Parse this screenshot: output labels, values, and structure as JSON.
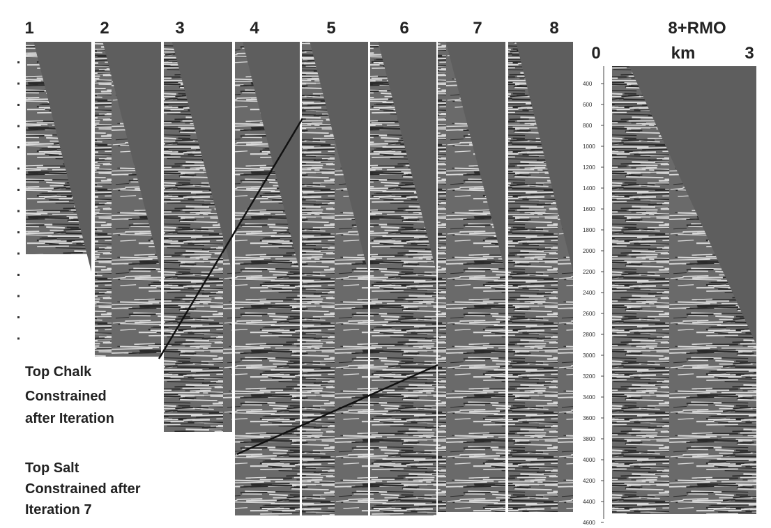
{
  "panel_labels": [
    "1",
    "2",
    "3",
    "4",
    "5",
    "6",
    "7",
    "8",
    "8+RMO"
  ],
  "axis": {
    "left": "0",
    "unit": "km",
    "right": "3"
  },
  "depth_scale": [
    "400",
    "600",
    "800",
    "1000",
    "1200",
    "1400",
    "1600",
    "1800",
    "2000",
    "2200",
    "2400",
    "2600",
    "2800",
    "3000",
    "3200",
    "3400",
    "3600",
    "3800",
    "4000",
    "4200",
    "4400",
    "4600"
  ],
  "annotations": [
    {
      "lines": [
        "Top Chalk",
        "Constrained",
        "after Iteration"
      ]
    },
    {
      "lines": [
        "Top Salt",
        "Constrained after",
        "Iteration 7"
      ]
    }
  ]
}
